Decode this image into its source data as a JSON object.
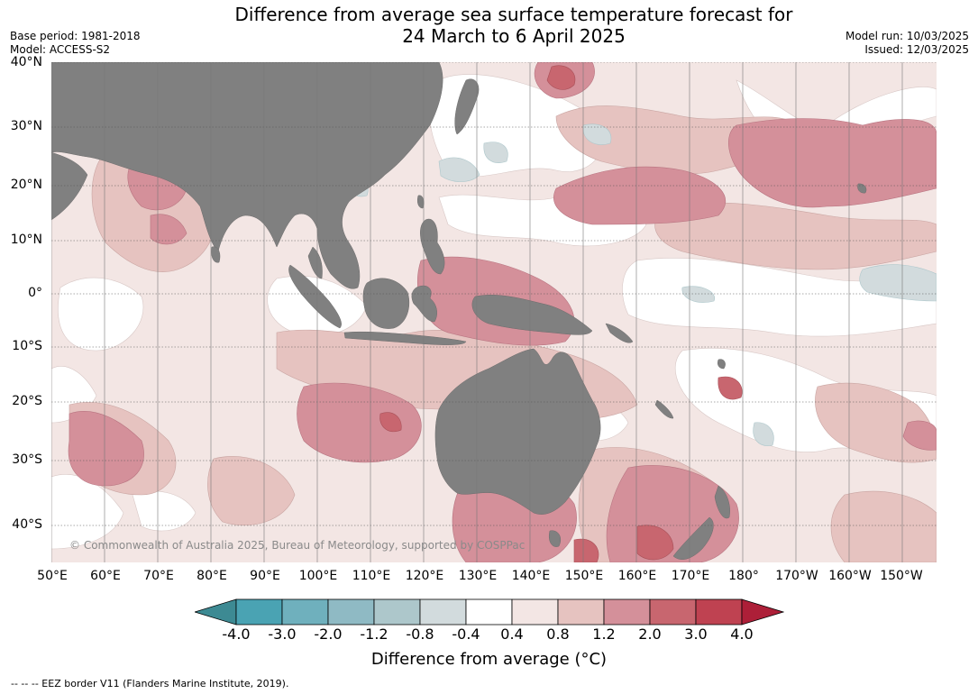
{
  "title_line1": "Difference from average sea surface temperature forecast for",
  "title_line2": "24 March to 6 April 2025",
  "base_period": "Base period: 1981-2018",
  "model": "Model: ACCESS-S2",
  "model_run": "Model run: 10/03/2025",
  "issued": "Issued: 12/03/2025",
  "lat_labels": [
    "40°N",
    "30°N",
    "20°N",
    "10°N",
    "0°",
    "10°S",
    "20°S",
    "30°S",
    "40°S"
  ],
  "lon_labels": [
    "50°E",
    "60°E",
    "70°E",
    "80°E",
    "90°E",
    "100°E",
    "110°E",
    "120°E",
    "130°E",
    "140°E",
    "150°E",
    "160°E",
    "170°E",
    "180°",
    "170°W",
    "160°W",
    "150°W"
  ],
  "copyright": "© Commonwealth of Australia 2025, Bureau of Meteorology, supported by COSPPac",
  "colorbar": {
    "ticks": [
      "-4.0",
      "-3.0",
      "-2.0",
      "-1.2",
      "-0.8",
      "-0.4",
      "0.4",
      "0.8",
      "1.2",
      "2.0",
      "3.0",
      "4.0"
    ],
    "colors": [
      "#3d8a93",
      "#4aa3b3",
      "#6fb0bd",
      "#8fbac4",
      "#adc7cb",
      "#d2dbdd",
      "#ffffff",
      "#f3e6e4",
      "#e6c3c0",
      "#d4909a",
      "#c8666f",
      "#bf4251",
      "#ad1f38"
    ],
    "label": "Difference from average (°C)"
  },
  "footer": "--  --  -- EEZ border V11 (Flanders Marine Institute, 2019).",
  "map_colors": {
    "ocean_neutral": "#ffffff",
    "land": "#808080"
  }
}
